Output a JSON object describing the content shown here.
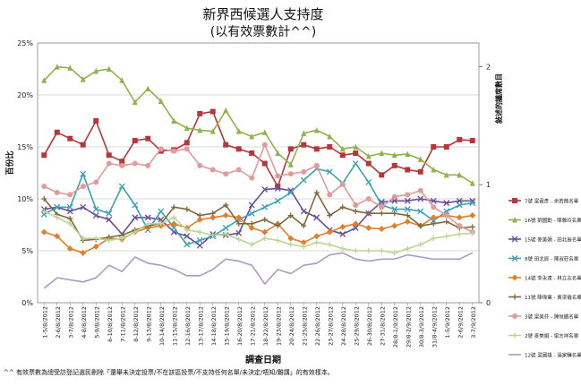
{
  "chart_data": {
    "type": "line",
    "title": "新界西候選人支持度",
    "subtitle": "(以有效票數計^^)",
    "xlabel": "調查日期",
    "ylabel": "百份比",
    "y2label": "敍述的議席數目",
    "footnote": "^^ 有效票數為總受訪登記選民刪除「還舉未決定投票/不在該區投票/不支持任何名單/未決定/唔知/難講」的有效樣本。",
    "ylim": [
      0,
      25
    ],
    "yticks": [
      "0%",
      "5%",
      "10%",
      "15%",
      "20%",
      "25%"
    ],
    "y2lim": [
      0,
      2.2
    ],
    "y2ticks": [
      "0",
      "1",
      "2"
    ],
    "categories": [
      "1-5/8/2012",
      "2-6/8/2012",
      "3-7/8/2012",
      "4-8/8/2012",
      "5-9/8/2012",
      "6-10/8/2012",
      "7-11/8/2012",
      "8-12/8/2012",
      "9-13/8/2012",
      "10-14/8/2012",
      "11-15/8/2012",
      "12-16/8/2012",
      "13-17/8/2012",
      "14-18/8/2012",
      "15-19/8/2012",
      "16-20/8/2012",
      "17-21/8/2012",
      "18-22/8/2012",
      "19-23/8/2012",
      "20-24/8/2012",
      "21-25/8/2012",
      "22-26/8/2012",
      "23-27/8/2012",
      "24-28/8/2012",
      "25-29/8/2012",
      "26-30/8/2012",
      "27-31/8/2012",
      "28/8-1/9/2012",
      "29/8-2/9/2012",
      "30/8-3/9/2012",
      "31/8-4/9/2012",
      "1-5/9/2012",
      "2-6/9/2012",
      "3-7/9/2012"
    ],
    "xtick_labels": [
      "1-5/8/2012",
      "2-6/8/2012",
      "3-7/8/2012",
      "4-8/8/2012",
      "5-9/8/2012",
      "6-10/8/2012",
      "7-11/8/2012",
      "8-12/8/2012",
      "9-13/8/2012",
      "10-14/8/2012",
      "11-15/8/2012",
      "12-16/8/2012",
      "13-17/8/2012",
      "14-18/8/2012",
      "15-19/8/2012",
      "16-20/8/2012",
      "17-21/8/2012",
      "18-22/8/2012",
      "19-23/8/2012",
      "20-24/8/2012",
      "21-25/8/2012",
      "22-26/8/2012",
      "23-27/8/2012",
      "24-28/8/2012",
      "25-29/8/2012",
      "26-30/8/2012",
      "27-31/8/2012",
      "28/8-1/9/2012",
      "29/8-2/9/2012",
      "30/8-3/9/2012",
      "31/8-4/9/2012",
      "1-5/9/2012",
      "2-6/9/2012",
      "3-7/9/2012"
    ],
    "grid": true,
    "legend_position": "right",
    "series": [
      {
        "name": "7號 梁君彥 - 余若薇名單",
        "color": "#b5373a",
        "marker": "square",
        "values": [
          14.2,
          16.4,
          15.8,
          15.2,
          17.5,
          14.2,
          13.6,
          15.6,
          15.8,
          14.6,
          14.7,
          15.4,
          18.2,
          18.4,
          15.2,
          14.8,
          14.4,
          13.4,
          11.2,
          14.8,
          15.2,
          14.8,
          15.0,
          14.2,
          14.4,
          13.4,
          12.3,
          13.2,
          12.8,
          12.6,
          15.0,
          15.0,
          15.7,
          15.6
        ]
      },
      {
        "name": "16號 劉國勳 - 陳雅玲名單",
        "color": "#8fb24a",
        "marker": "triangle",
        "values": [
          21.4,
          22.7,
          22.6,
          21.5,
          22.3,
          22.5,
          21.4,
          19.3,
          20.6,
          19.4,
          17.5,
          16.8,
          16.6,
          16.5,
          18.5,
          16.5,
          16.0,
          16.4,
          14.4,
          13.3,
          16.3,
          16.6,
          16.0,
          14.8,
          15.0,
          14.1,
          14.4,
          14.2,
          14.3,
          13.8,
          12.8,
          12.3,
          12.3,
          11.5
        ]
      },
      {
        "name": "15號 麥美娟 - 田北辰名單",
        "color": "#6a4c9c",
        "marker": "x",
        "values": [
          9.0,
          9.2,
          8.8,
          9.2,
          8.4,
          8.0,
          6.6,
          8.2,
          8.2,
          8.0,
          6.8,
          6.4,
          5.5,
          6.6,
          6.5,
          6.7,
          9.4,
          10.9,
          11.0,
          10.8,
          8.8,
          8.2,
          7.0,
          6.6,
          7.2,
          8.6,
          9.7,
          9.8,
          9.8,
          10.0,
          9.8,
          9.6,
          9.8,
          9.8
        ]
      },
      {
        "name": "8號 田北辰 - 陳淑莊名單",
        "color": "#3ba0b8",
        "marker": "x",
        "values": [
          8.5,
          9.2,
          9.2,
          12.4,
          9.0,
          8.6,
          11.2,
          9.4,
          7.0,
          8.8,
          7.2,
          5.6,
          6.0,
          6.4,
          7.2,
          8.0,
          8.6,
          9.2,
          9.8,
          10.6,
          11.8,
          12.9,
          12.6,
          11.5,
          13.4,
          11.6,
          9.4,
          9.0,
          9.0,
          8.8,
          7.9,
          8.8,
          9.4,
          9.6
        ]
      },
      {
        "name": "14號 李永達 - 林立志名單",
        "color": "#e07f2c",
        "marker": "diamond",
        "values": [
          6.8,
          6.4,
          5.2,
          4.8,
          5.4,
          6.2,
          6.1,
          6.8,
          7.2,
          7.4,
          7.6,
          7.2,
          8.0,
          8.2,
          8.4,
          8.2,
          7.2,
          6.8,
          7.6,
          6.2,
          5.8,
          6.4,
          6.8,
          7.3,
          7.6,
          7.2,
          7.1,
          7.4,
          7.8,
          7.4,
          8.2,
          8.4,
          8.2,
          8.4
        ]
      },
      {
        "name": "11號 陳偉業 - 黃潔儀名單",
        "color": "#806a3c",
        "marker": "plus",
        "values": [
          10.0,
          8.5,
          8.1,
          6.0,
          6.1,
          6.3,
          6.5,
          7.0,
          7.4,
          7.6,
          9.2,
          9.0,
          8.4,
          8.6,
          9.4,
          7.6,
          7.6,
          8.0,
          7.4,
          8.4,
          7.4,
          10.6,
          8.4,
          9.2,
          8.8,
          8.6,
          8.6,
          8.6,
          8.4,
          7.4,
          7.6,
          7.8,
          7.2,
          7.3
        ]
      },
      {
        "name": "3號 梁美芬 - 陳恒鑌名單",
        "color": "#e29a9c",
        "marker": "circle",
        "values": [
          11.2,
          10.6,
          10.4,
          11.2,
          11.6,
          13.4,
          13.2,
          13.4,
          13.2,
          14.8,
          14.6,
          14.8,
          13.2,
          12.8,
          12.4,
          12.8,
          12.0,
          15.2,
          12.2,
          12.4,
          12.6,
          13.2,
          10.4,
          11.4,
          9.4,
          10.0,
          9.2,
          10.2,
          10.4,
          10.8,
          9.2,
          8.4,
          7.4,
          6.8
        ]
      },
      {
        "name": "2號 麥美娟 - 梁志祥名單",
        "color": "#bcd694",
        "marker": "cross",
        "values": [
          8.8,
          8.2,
          7.6,
          6.2,
          6.2,
          6.0,
          6.2,
          6.8,
          7.6,
          7.6,
          8.2,
          7.0,
          6.8,
          6.5,
          6.6,
          6.1,
          5.6,
          6.2,
          6.0,
          5.6,
          5.4,
          5.8,
          5.6,
          5.2,
          5.0,
          5.0,
          5.0,
          4.8,
          5.2,
          5.6,
          6.2,
          6.4,
          6.6,
          6.7
        ]
      },
      {
        "name": "12號 梁國雄 - 湯家驊名單",
        "color": "#a89bc4",
        "marker": "none",
        "values": [
          1.4,
          2.4,
          2.2,
          2.0,
          2.4,
          3.6,
          3.0,
          4.4,
          3.8,
          3.6,
          3.2,
          2.6,
          2.6,
          3.2,
          4.2,
          4.0,
          3.6,
          1.8,
          3.2,
          2.8,
          3.6,
          3.8,
          4.6,
          4.8,
          4.2,
          4.0,
          4.2,
          4.2,
          4.6,
          4.4,
          4.2,
          4.2,
          4.2,
          4.8
        ]
      }
    ]
  }
}
